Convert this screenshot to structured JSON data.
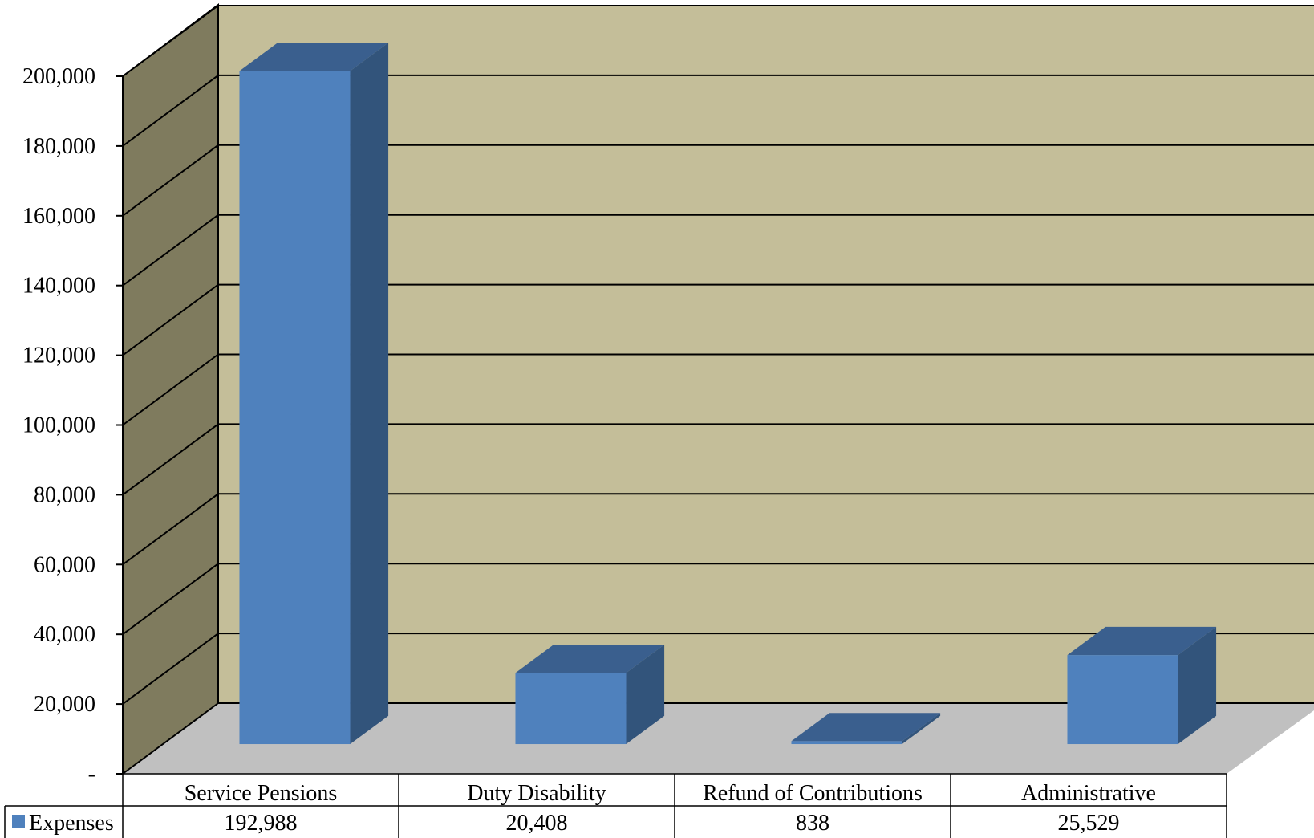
{
  "chart_data": {
    "type": "bar",
    "categories": [
      "Service Pensions",
      "Duty Disability",
      "Refund of Contributions",
      "Administrative"
    ],
    "series": [
      {
        "name": "Expenses",
        "values": [
          192988,
          20408,
          838,
          25529
        ],
        "color": "#4F81BD"
      }
    ],
    "data_labels": [
      "192,988",
      "20,408",
      "838",
      "25,529"
    ],
    "y_ticks": [
      "-",
      "20,000",
      "40,000",
      "60,000",
      "80,000",
      "100,000",
      "120,000",
      "140,000",
      "160,000",
      "180,000",
      "200,000"
    ],
    "ylim": [
      0,
      200000
    ],
    "grid": true,
    "legend": "data-table",
    "title": "",
    "xlabel": "",
    "ylabel": ""
  },
  "colors": {
    "back_wall": "#C4BE99",
    "side_wall": "#7F7B5E",
    "floor": "#C0C0C0",
    "bar_front": "#4F81BD",
    "bar_top": "#3A5F8E",
    "bar_side": "#32547B",
    "gridline": "#000000"
  }
}
